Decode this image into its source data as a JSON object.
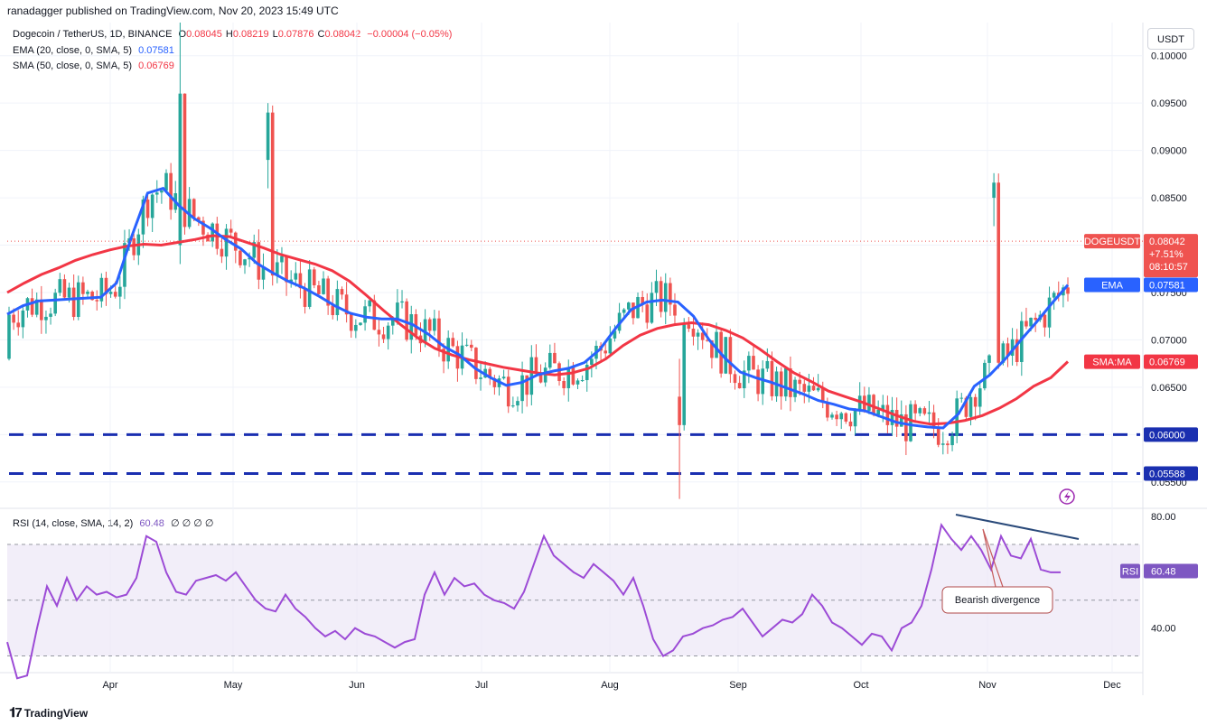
{
  "header": {
    "published": "ranadagger published on TradingView.com, Nov 20, 2023 15:49 UTC"
  },
  "legend": {
    "title": "Dogecoin / TetherUS, 1D, BINANCE",
    "ohlc": [
      {
        "k": "O",
        "v": "0.08045"
      },
      {
        "k": "H",
        "v": "0.08219"
      },
      {
        "k": "L",
        "v": "0.07876"
      },
      {
        "k": "C",
        "v": "0.08042"
      }
    ],
    "change": "−0.00004 (−0.05%)",
    "ema_label": "EMA (20, close, 0, SMA, 5)",
    "ema_value": "0.07581",
    "sma_label": "SMA (50, close, 0, SMA, 5)",
    "sma_value": "0.06769",
    "rsi_label": "RSI (14, close, SMA, 14, 2)",
    "rsi_value": "60.48",
    "rsi_extra": "∅ ∅ ∅ ∅"
  },
  "unit": "USDT",
  "branding": "TradingView",
  "colors": {
    "up": "#26a69a",
    "down": "#ef5350",
    "ema": "#2962ff",
    "sma": "#f23645",
    "rsi": "#9c4bd6",
    "support": "#1a2fb0"
  },
  "chart_data": [
    {
      "type": "candlestick",
      "title": "Dogecoin / TetherUS, 1D, BINANCE",
      "ylabel": "USDT",
      "ylim": [
        0.0525,
        0.1035
      ],
      "y_ticks": [
        "0.10000",
        "0.09500",
        "0.09000",
        "0.08500",
        "0.08000",
        "0.07500",
        "0.07000",
        "0.06500",
        "0.06000",
        "0.05500"
      ],
      "x_ticks": [
        "Apr",
        "May",
        "Jun",
        "Jul",
        "Aug",
        "Sep",
        "Oct",
        "Nov",
        "Dec"
      ],
      "last_price": "0.08042",
      "price_label": {
        "symbol": "DOGEUSDT",
        "value": "0.08042",
        "change": "+7.51%",
        "countdown": "08:10:57"
      },
      "ema": {
        "name": "EMA",
        "value": "0.07581"
      },
      "sma": {
        "name": "SMA:MA",
        "value": "0.06769"
      },
      "support_levels": [
        {
          "value": 0.06,
          "label": "0.06000"
        },
        {
          "value": 0.05588,
          "label": "0.05588"
        }
      ],
      "ema_series": [
        0.0727,
        0.0736,
        0.0741,
        0.0742,
        0.0743,
        0.0744,
        0.0745,
        0.076,
        0.081,
        0.0855,
        0.086,
        0.0842,
        0.0828,
        0.0818,
        0.0806,
        0.0796,
        0.0781,
        0.0771,
        0.0762,
        0.0755,
        0.0746,
        0.0736,
        0.0728,
        0.0724,
        0.0722,
        0.0722,
        0.0716,
        0.0706,
        0.0693,
        0.0684,
        0.067,
        0.066,
        0.0652,
        0.0655,
        0.0663,
        0.0667,
        0.067,
        0.0676,
        0.069,
        0.0712,
        0.0732,
        0.074,
        0.0742,
        0.074,
        0.0725,
        0.07,
        0.0681,
        0.0666,
        0.066,
        0.0655,
        0.0649,
        0.0643,
        0.0636,
        0.0632,
        0.0627,
        0.0625,
        0.0619,
        0.0613,
        0.061,
        0.0608,
        0.0607,
        0.0622,
        0.0651,
        0.0663,
        0.068,
        0.07,
        0.0719,
        0.0739,
        0.0758
      ],
      "sma_series": [
        0.075,
        0.076,
        0.0769,
        0.0776,
        0.0784,
        0.079,
        0.0795,
        0.0799,
        0.0801,
        0.08,
        0.0803,
        0.0806,
        0.081,
        0.0809,
        0.0803,
        0.0797,
        0.079,
        0.0785,
        0.078,
        0.0773,
        0.0762,
        0.0747,
        0.0731,
        0.0716,
        0.0702,
        0.0691,
        0.0684,
        0.0679,
        0.0675,
        0.0671,
        0.0668,
        0.0665,
        0.0663,
        0.0665,
        0.067,
        0.068,
        0.0694,
        0.0705,
        0.0712,
        0.0716,
        0.0718,
        0.0716,
        0.071,
        0.0702,
        0.069,
        0.0677,
        0.0665,
        0.0656,
        0.0646,
        0.064,
        0.0634,
        0.0627,
        0.062,
        0.0614,
        0.0611,
        0.0612,
        0.0615,
        0.062,
        0.0628,
        0.0638,
        0.0651,
        0.066,
        0.0677
      ]
    },
    {
      "type": "line",
      "title": "RSI (14, close, SMA, 14, 2)",
      "ylim": [
        25,
        82
      ],
      "y_ticks": [
        "80.00",
        "40.00"
      ],
      "bands": [
        70,
        50,
        30
      ],
      "last_value": "60.48",
      "series_name": "RSI",
      "values": [
        35,
        22,
        23,
        40,
        55,
        48,
        58,
        50,
        55,
        52,
        53,
        51,
        52,
        58,
        73,
        71,
        60,
        53,
        52,
        57,
        58,
        59,
        57,
        60,
        55,
        50,
        47,
        46,
        52,
        47,
        44,
        40,
        37,
        39,
        36,
        40,
        38,
        37,
        35,
        33,
        35,
        36,
        52,
        60,
        52,
        58,
        55,
        56,
        52,
        50,
        49,
        47,
        53,
        63,
        73,
        66,
        63,
        60,
        58,
        63,
        60,
        57,
        52,
        58,
        48,
        36,
        30,
        32,
        37,
        38,
        40,
        41,
        43,
        44,
        47,
        42,
        37,
        40,
        43,
        42,
        45,
        52,
        48,
        42,
        40,
        37,
        34,
        38,
        37,
        32,
        40,
        42,
        48,
        61,
        77,
        72,
        68,
        73,
        68,
        61,
        73,
        66,
        65,
        72,
        61,
        60,
        60
      ],
      "annotation": {
        "text": "Bearish divergence"
      }
    }
  ]
}
